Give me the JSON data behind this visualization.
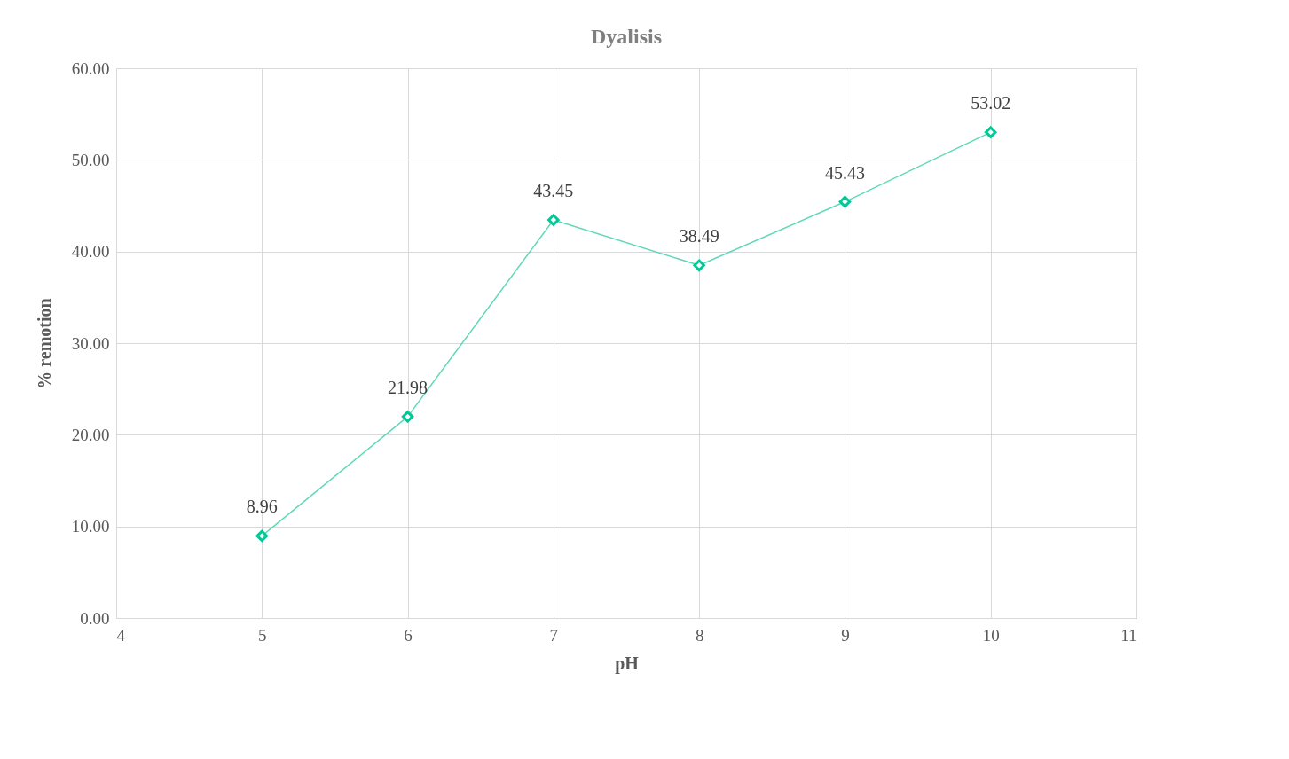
{
  "chart_data": {
    "type": "line",
    "title": "Dyalisis",
    "xlabel": "pH",
    "ylabel": "% remotion",
    "x": [
      5,
      6,
      7,
      8,
      9,
      10
    ],
    "series": [
      {
        "color": "#00c896",
        "values": [
          8.96,
          21.98,
          43.45,
          38.49,
          45.43,
          53.02
        ]
      }
    ],
    "xlim": [
      4,
      11
    ],
    "xticks": [
      4,
      5,
      6,
      7,
      8,
      9,
      10,
      11
    ],
    "ylim": [
      0,
      60
    ],
    "yticks": [
      {
        "value": 0,
        "label": "0.00"
      },
      {
        "value": 10,
        "label": "10.00"
      },
      {
        "value": 20,
        "label": "20.00"
      },
      {
        "value": 30,
        "label": "30.00"
      },
      {
        "value": 40,
        "label": "40.00"
      },
      {
        "value": 50,
        "label": "50.00"
      },
      {
        "value": 60,
        "label": "60.00"
      }
    ],
    "grid": true,
    "marker": "diamond",
    "line_style": "solid",
    "data_labels": true
  }
}
